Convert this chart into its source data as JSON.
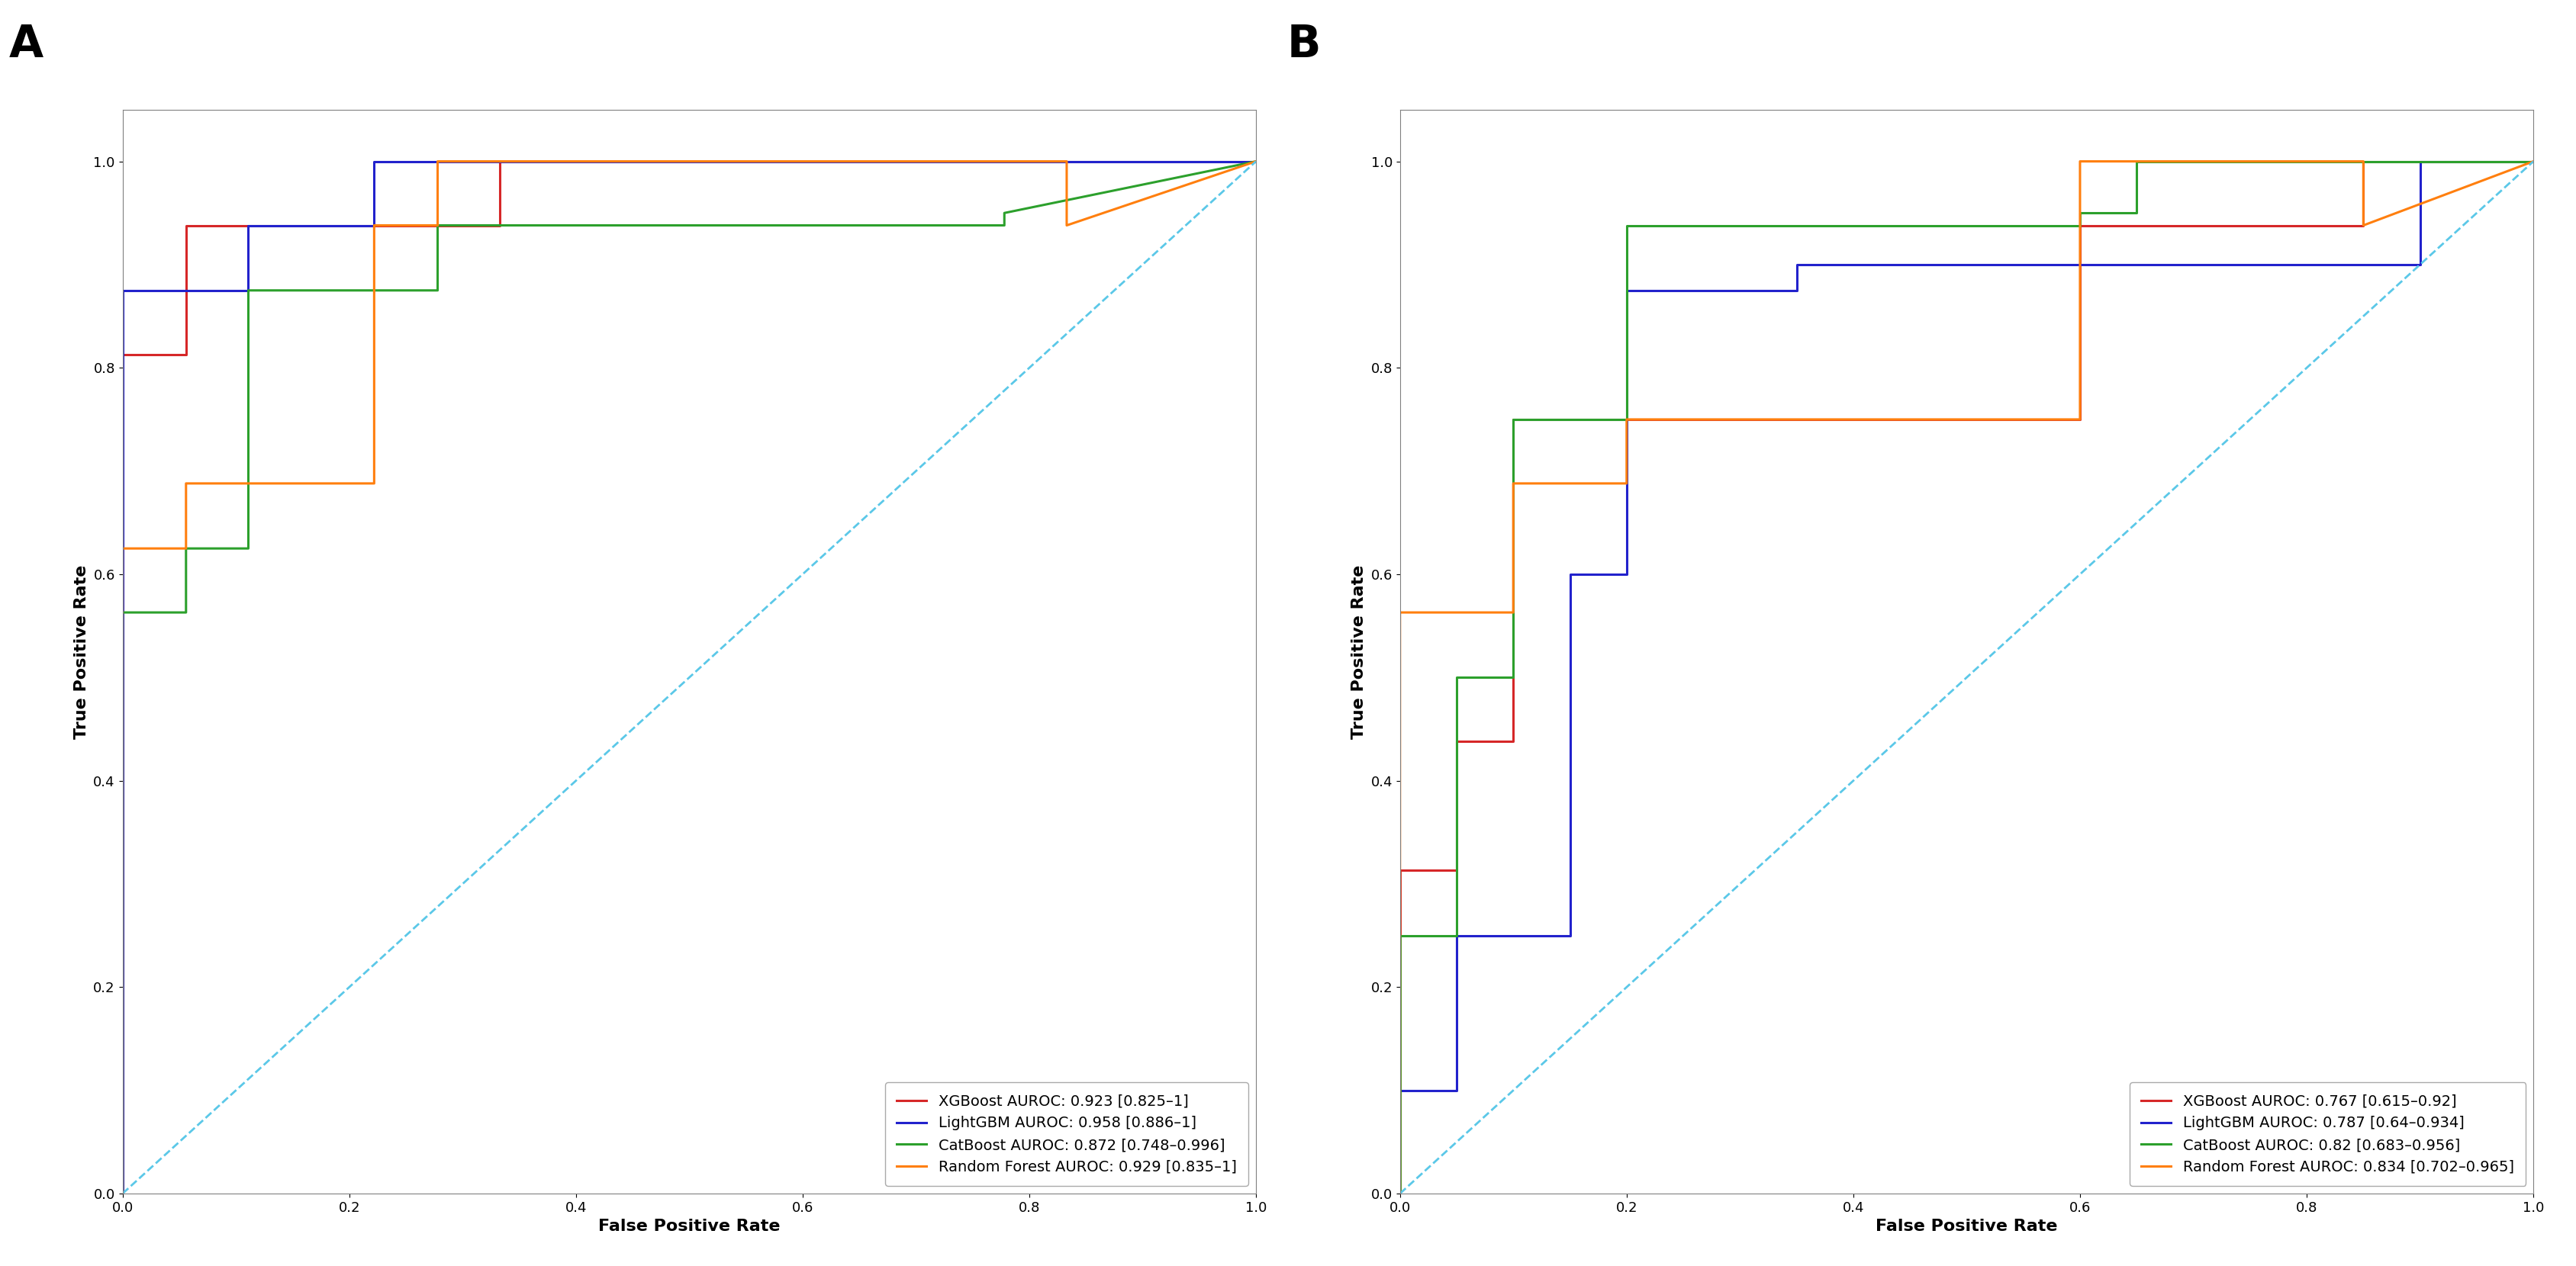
{
  "panel_A": {
    "label": "A",
    "curves": {
      "XGBoost": {
        "color": "#d62728",
        "label": "XGBoost AUROC: 0.923 [0.825–1]",
        "fpr": [
          0.0,
          0.0,
          0.056,
          0.056,
          0.333,
          0.333,
          1.0
        ],
        "tpr": [
          0.0,
          0.813,
          0.813,
          0.938,
          0.938,
          1.0,
          1.0
        ]
      },
      "LightGBM": {
        "color": "#2222cc",
        "label": "LightGBM AUROC: 0.958 [0.886–1]",
        "fpr": [
          0.0,
          0.0,
          0.111,
          0.111,
          0.222,
          0.222,
          1.0
        ],
        "tpr": [
          0.0,
          0.875,
          0.875,
          0.938,
          0.938,
          1.0,
          1.0
        ]
      },
      "CatBoost": {
        "color": "#2ca02c",
        "label": "CatBoost AUROC: 0.872 [0.748–0.996]",
        "fpr": [
          0.0,
          0.0,
          0.056,
          0.056,
          0.111,
          0.111,
          0.278,
          0.278,
          0.778,
          0.778,
          1.0
        ],
        "tpr": [
          0.0,
          0.563,
          0.563,
          0.625,
          0.625,
          0.875,
          0.875,
          0.938,
          0.938,
          0.95,
          1.0
        ]
      },
      "RandomForest": {
        "color": "#ff7f0e",
        "label": "Random Forest AUROC: 0.929 [0.835–1]",
        "fpr": [
          0.0,
          0.0,
          0.056,
          0.056,
          0.222,
          0.222,
          0.278,
          0.278,
          0.833,
          0.833,
          1.0
        ],
        "tpr": [
          0.0,
          0.625,
          0.625,
          0.688,
          0.688,
          0.938,
          0.938,
          1.0,
          1.0,
          0.938,
          1.0
        ]
      }
    }
  },
  "panel_B": {
    "label": "B",
    "curves": {
      "XGBoost": {
        "color": "#d62728",
        "label": "XGBoost AUROC: 0.767 [0.615–0.92]",
        "fpr": [
          0.0,
          0.0,
          0.05,
          0.05,
          0.1,
          0.1,
          0.6,
          0.6,
          0.85,
          0.85,
          1.0
        ],
        "tpr": [
          0.0,
          0.313,
          0.313,
          0.438,
          0.438,
          0.75,
          0.75,
          0.938,
          0.938,
          1.0,
          1.0
        ]
      },
      "LightGBM": {
        "color": "#2222cc",
        "label": "LightGBM AUROC: 0.787 [0.64–0.934]",
        "fpr": [
          0.0,
          0.0,
          0.05,
          0.05,
          0.15,
          0.15,
          0.2,
          0.2,
          0.35,
          0.35,
          0.9,
          0.9,
          1.0
        ],
        "tpr": [
          0.0,
          0.1,
          0.1,
          0.25,
          0.25,
          0.6,
          0.6,
          0.875,
          0.875,
          0.9,
          0.9,
          1.0,
          1.0
        ]
      },
      "CatBoost": {
        "color": "#2ca02c",
        "label": "CatBoost AUROC: 0.82 [0.683–0.956]",
        "fpr": [
          0.0,
          0.0,
          0.05,
          0.05,
          0.1,
          0.1,
          0.2,
          0.2,
          0.6,
          0.6,
          0.65,
          0.65,
          1.0
        ],
        "tpr": [
          0.0,
          0.25,
          0.25,
          0.5,
          0.5,
          0.75,
          0.75,
          0.938,
          0.938,
          0.95,
          0.95,
          1.0,
          1.0
        ]
      },
      "RandomForest": {
        "color": "#ff7f0e",
        "label": "Random Forest AUROC: 0.834 [0.702–0.965]",
        "fpr": [
          0.0,
          0.0,
          0.1,
          0.1,
          0.2,
          0.2,
          0.6,
          0.6,
          0.85,
          0.85,
          1.0
        ],
        "tpr": [
          0.0,
          0.563,
          0.563,
          0.688,
          0.688,
          0.75,
          0.75,
          1.0,
          1.0,
          0.938,
          1.0
        ]
      }
    }
  },
  "diagonal": {
    "fpr": [
      0.0,
      1.0
    ],
    "tpr": [
      0.0,
      1.0
    ],
    "color": "#5bc8e8",
    "linestyle": "dashed",
    "linewidth": 2.0
  },
  "curve_linewidth": 2.2,
  "xlabel": "False Positive Rate",
  "ylabel": "True Positive Rate",
  "legend_fontsize": 14,
  "axis_label_fontsize": 16,
  "panel_label_fontsize": 42,
  "tick_fontsize": 13,
  "xlim": [
    0.0,
    1.0
  ],
  "ylim": [
    0.0,
    1.05
  ],
  "yticks": [
    0.0,
    0.2,
    0.4,
    0.6,
    0.8,
    1.0
  ],
  "xticks": [
    0.0,
    0.2,
    0.4,
    0.6,
    0.8,
    1.0
  ],
  "background_color": "#ffffff"
}
